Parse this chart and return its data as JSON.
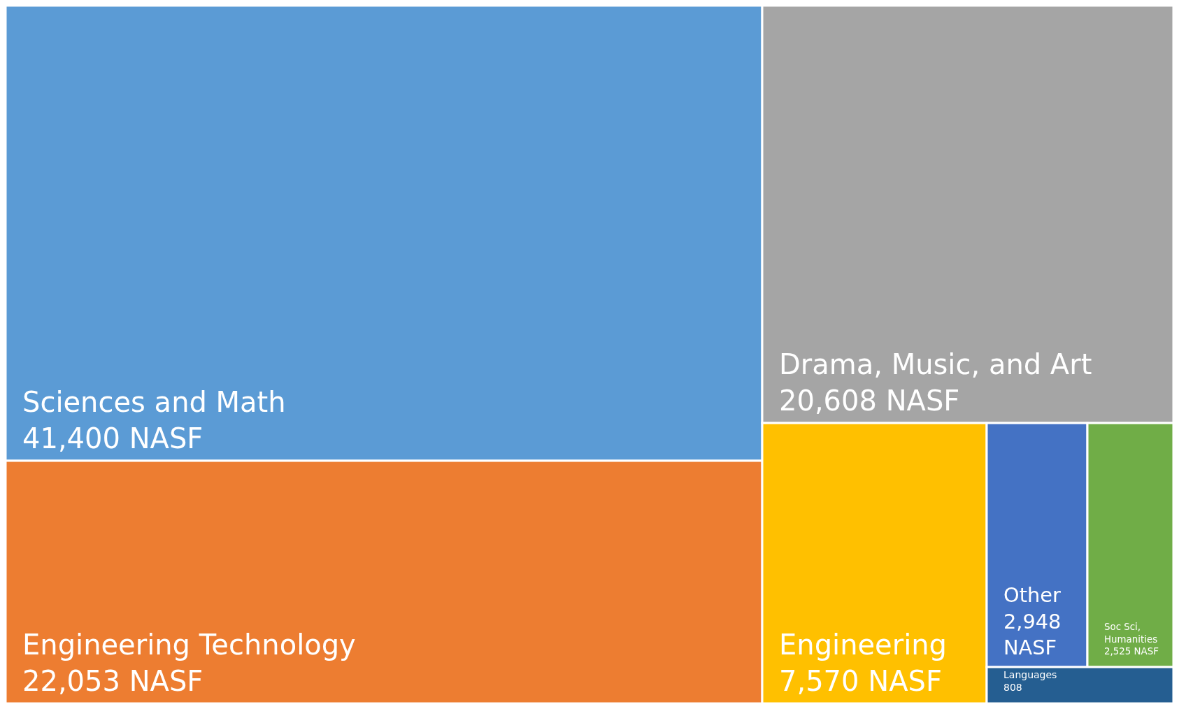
{
  "chart_data": {
    "type": "other",
    "categories": [
      "Sciences and Math",
      "Engineering Technology",
      "Drama, Music, and Art",
      "Engineering",
      "Other",
      "Soc Sci, Humanities",
      "Languages"
    ],
    "values": [
      41400,
      22053,
      20608,
      7570,
      2948,
      2525,
      808
    ],
    "value_labels": [
      "41,400 NASF",
      "22,053 NASF",
      "20,608 NASF",
      "7,570 NASF",
      "2,948 NASF",
      "2,525 NASF",
      "808"
    ],
    "colors": [
      "#5b9bd5",
      "#ed7d31",
      "#a5a5a5",
      "#ffc000",
      "#4472c4",
      "#70ad47",
      "#255e91"
    ]
  }
}
